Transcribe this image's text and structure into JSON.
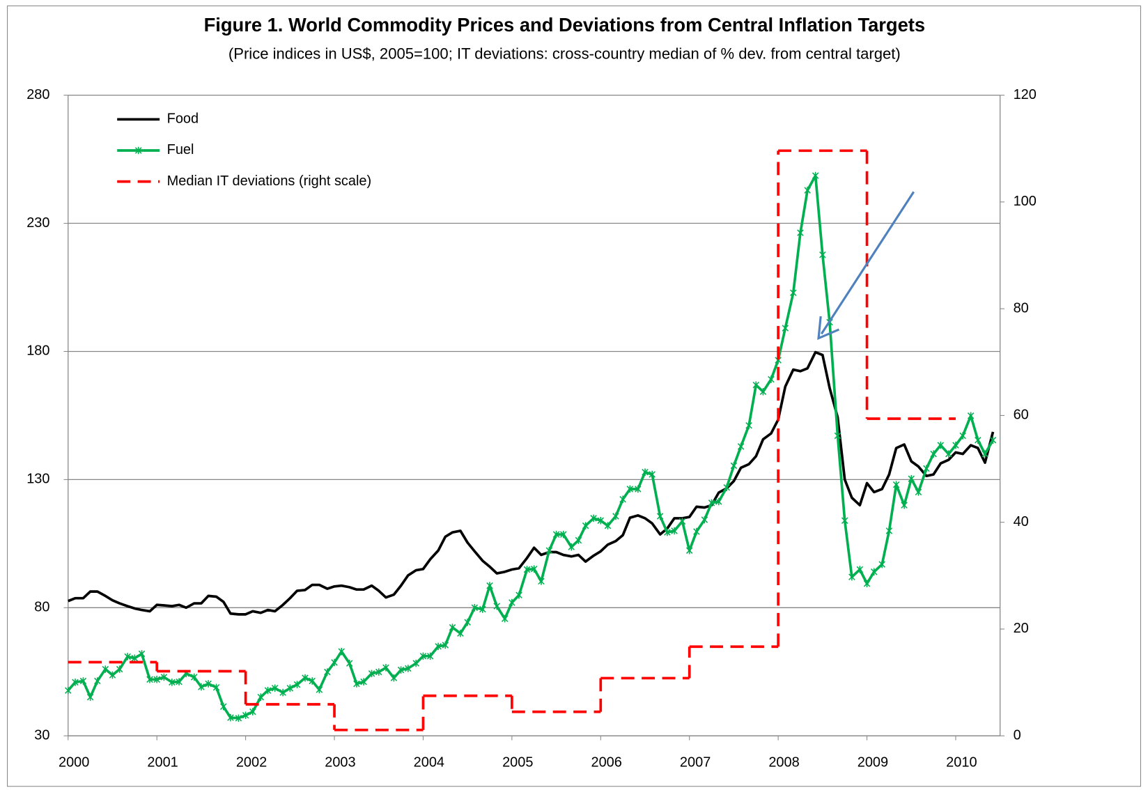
{
  "chart_data": {
    "type": "line",
    "title": "Figure 1. World Commodity Prices and Deviations from Central Inflation Targets",
    "subtitle": "(Price indices in US$, 2005=100; IT deviations: cross-country median of % dev. from central target)",
    "x": [
      2000,
      2000.08,
      2000.17,
      2000.25,
      2000.33,
      2000.42,
      2000.5,
      2000.58,
      2000.67,
      2000.75,
      2000.83,
      2000.92,
      2001,
      2001.08,
      2001.17,
      2001.25,
      2001.33,
      2001.42,
      2001.5,
      2001.58,
      2001.67,
      2001.75,
      2001.83,
      2001.92,
      2002,
      2002.08,
      2002.17,
      2002.25,
      2002.33,
      2002.42,
      2002.5,
      2002.58,
      2002.67,
      2002.75,
      2002.83,
      2002.92,
      2003,
      2003.08,
      2003.17,
      2003.25,
      2003.33,
      2003.42,
      2003.5,
      2003.58,
      2003.67,
      2003.75,
      2003.83,
      2003.92,
      2004,
      2004.08,
      2004.17,
      2004.25,
      2004.33,
      2004.42,
      2004.5,
      2004.58,
      2004.67,
      2004.75,
      2004.83,
      2004.92,
      2005,
      2005.08,
      2005.17,
      2005.25,
      2005.33,
      2005.42,
      2005.5,
      2005.58,
      2005.67,
      2005.75,
      2005.83,
      2005.92,
      2006,
      2006.08,
      2006.17,
      2006.25,
      2006.33,
      2006.42,
      2006.5,
      2006.58,
      2006.67,
      2006.75,
      2006.83,
      2006.92,
      2007,
      2007.08,
      2007.17,
      2007.25,
      2007.33,
      2007.42,
      2007.5,
      2007.58,
      2007.67,
      2007.75,
      2007.83,
      2007.92,
      2008,
      2008.08,
      2008.17,
      2008.25,
      2008.33,
      2008.42,
      2008.5,
      2008.58,
      2008.67,
      2008.75,
      2008.83,
      2008.92,
      2009,
      2009.08,
      2009.17,
      2009.25,
      2009.33,
      2009.42,
      2009.5,
      2009.58,
      2009.67,
      2009.75,
      2009.83,
      2009.92,
      2010,
      2010.08,
      2010.17,
      2010.25,
      2010.33,
      2010.42
    ],
    "series": [
      {
        "name": "Food",
        "color": "#000000",
        "values": [
          82.6,
          83.7,
          83.7,
          86.3,
          86.3,
          84.6,
          82.9,
          81.7,
          80.6,
          79.7,
          79.1,
          78.6,
          81.1,
          80.9,
          80.6,
          81.1,
          80,
          81.7,
          81.7,
          84.6,
          84.3,
          82.3,
          77.7,
          77.4,
          77.4,
          78.6,
          78,
          79.1,
          78.6,
          81.1,
          83.7,
          86.6,
          86.9,
          88.9,
          88.9,
          87.4,
          88.3,
          88.6,
          88,
          87.1,
          87.1,
          88.6,
          86.6,
          84,
          85.1,
          88.6,
          92.6,
          94.6,
          95.1,
          98.9,
          102.3,
          107.7,
          109.4,
          110,
          105.4,
          102,
          98.3,
          96,
          93.4,
          94,
          94.9,
          95.4,
          99.4,
          103.4,
          100.6,
          101.7,
          101.7,
          100.6,
          100,
          100.6,
          98,
          100.3,
          102,
          104.6,
          106,
          108.3,
          115.1,
          116,
          114.9,
          112.9,
          108.6,
          110.9,
          114.9,
          114.9,
          115.4,
          119.4,
          119.1,
          120,
          124.9,
          126.6,
          129.4,
          134.6,
          136,
          139.1,
          145.7,
          148,
          153.4,
          166.3,
          172.9,
          172.3,
          173.4,
          179.7,
          178.6,
          165.7,
          154.3,
          130,
          122.9,
          120,
          128.6,
          125.1,
          126.3,
          132,
          142.3,
          143.7,
          137.1,
          135.1,
          131.4,
          132,
          136.3,
          137.7,
          140.6,
          140,
          143.4,
          142.3,
          136.6,
          148.6
        ]
      },
      {
        "name": "Fuel",
        "color": "#00b050",
        "markers": true,
        "values": [
          47.7,
          50.9,
          51.4,
          45.1,
          51.4,
          56,
          53.7,
          56,
          60.9,
          60.3,
          62,
          52,
          52,
          52.9,
          50.9,
          51.1,
          54.3,
          52.9,
          49.1,
          50.3,
          48.9,
          41.4,
          37.1,
          36.9,
          38,
          39.4,
          45.1,
          47.7,
          48.6,
          46.9,
          48.6,
          50,
          52.6,
          51.4,
          48,
          54.9,
          58.6,
          62.9,
          58.3,
          50.3,
          51.1,
          54.3,
          54.9,
          56.6,
          52.6,
          55.7,
          56.3,
          58.3,
          61.1,
          61.1,
          64.9,
          65.4,
          72.3,
          70,
          74.3,
          80,
          79.4,
          88.6,
          80.6,
          75.7,
          82,
          84.9,
          94.9,
          95.1,
          90.3,
          102.3,
          108.6,
          108.6,
          103.7,
          106.3,
          112,
          114.9,
          114,
          112,
          115.7,
          122.3,
          126.3,
          126.3,
          132.9,
          132,
          115.7,
          109.4,
          110,
          113.7,
          102.3,
          109.7,
          114.3,
          120.9,
          121.4,
          126.9,
          135.4,
          142.9,
          151.1,
          166.9,
          164.3,
          169.1,
          176.6,
          189.1,
          202.9,
          226.3,
          242.9,
          248.6,
          217.7,
          191.4,
          147.1,
          114,
          92,
          94.9,
          89.4,
          94,
          96.9,
          110,
          128,
          120,
          130.3,
          125.1,
          134.3,
          140,
          143.4,
          140,
          143.4,
          147.1,
          154.9,
          145.4,
          140,
          145.4
        ]
      },
      {
        "name": "Median IT deviations (right scale)",
        "color": "#ff0000",
        "axis": "y2",
        "dashed": true,
        "step": true,
        "x": [
          2000,
          2001,
          2002,
          2003,
          2004,
          2005,
          2006,
          2007,
          2008,
          2009
        ],
        "values": [
          13.8,
          12.1,
          5.9,
          1.1,
          7.5,
          4.5,
          10.8,
          16.7,
          109.6,
          59.4
        ]
      }
    ],
    "xlim": [
      2000,
      2010.5
    ],
    "xticks": [
      2000,
      2001,
      2002,
      2003,
      2004,
      2005,
      2006,
      2007,
      2008,
      2009,
      2010
    ],
    "ylim": [
      30,
      280
    ],
    "yticks": [
      30,
      80,
      130,
      180,
      230,
      280
    ],
    "y2lim": [
      0,
      120
    ],
    "y2ticks": [
      0,
      20,
      40,
      60,
      80,
      100,
      120
    ],
    "grid": true,
    "legend": "top-left"
  }
}
